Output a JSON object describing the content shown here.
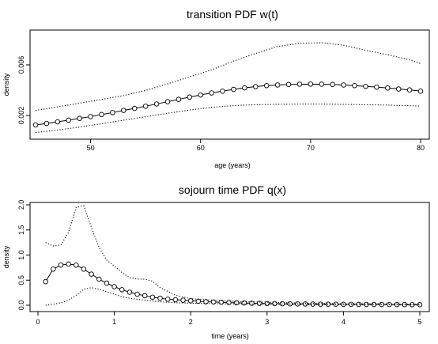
{
  "chart_data": [
    {
      "type": "line",
      "title": "transition PDF w(t)",
      "xlabel": "age (years)",
      "ylabel": "density",
      "xlim": [
        45,
        80
      ],
      "ylim": [
        0.0005,
        0.0085
      ],
      "xticks": [
        50,
        60,
        70,
        80
      ],
      "yticks": [
        0.002,
        0.006
      ],
      "ytick_labels": [
        "0.002",
        "0.006"
      ],
      "grid": false,
      "series": [
        {
          "style": "solid-with-circles",
          "x": [
            45,
            46,
            47,
            48,
            49,
            50,
            51,
            52,
            53,
            54,
            55,
            56,
            57,
            58,
            59,
            60,
            61,
            62,
            63,
            64,
            65,
            66,
            67,
            68,
            69,
            70,
            71,
            72,
            73,
            74,
            75,
            76,
            77,
            78,
            79,
            80
          ],
          "y": [
            0.00125,
            0.00137,
            0.0015,
            0.00163,
            0.00177,
            0.00191,
            0.00207,
            0.00223,
            0.0024,
            0.00256,
            0.00273,
            0.00291,
            0.00309,
            0.00327,
            0.00345,
            0.00362,
            0.00378,
            0.00392,
            0.00406,
            0.00418,
            0.00428,
            0.00436,
            0.00441,
            0.00445,
            0.00447,
            0.00448,
            0.00447,
            0.00445,
            0.00441,
            0.00436,
            0.0043,
            0.00424,
            0.00417,
            0.00409,
            0.00402,
            0.00392
          ]
        },
        {
          "style": "dotted",
          "x": [
            45,
            47,
            49,
            51,
            53,
            55,
            57,
            59,
            61,
            63,
            65,
            67,
            69,
            71,
            73,
            75,
            77,
            79,
            80
          ],
          "y": [
            0.0024,
            0.00268,
            0.00297,
            0.00327,
            0.00357,
            0.00398,
            0.0045,
            0.00505,
            0.0056,
            0.0063,
            0.0069,
            0.00745,
            0.0077,
            0.00775,
            0.00755,
            0.00715,
            0.0068,
            0.0064,
            0.0061
          ]
        },
        {
          "style": "dotted",
          "x": [
            45,
            47,
            49,
            51,
            53,
            55,
            57,
            59,
            61,
            63,
            65,
            67,
            69,
            71,
            73,
            75,
            77,
            79,
            80
          ],
          "y": [
            0.00065,
            0.00085,
            0.00108,
            0.00135,
            0.00163,
            0.0019,
            0.00217,
            0.00243,
            0.00265,
            0.00278,
            0.00285,
            0.00288,
            0.0029,
            0.0029,
            0.00288,
            0.00285,
            0.00282,
            0.00277,
            0.00274
          ]
        }
      ]
    },
    {
      "type": "line",
      "title": "sojourn time PDF q(x)",
      "xlabel": "time (years)",
      "ylabel": "density",
      "xlim": [
        0,
        5
      ],
      "ylim": [
        0,
        2.0
      ],
      "xticks": [
        0,
        1,
        2,
        3,
        4,
        5
      ],
      "yticks": [
        0.0,
        0.5,
        1.0,
        1.5,
        2.0
      ],
      "ytick_labels": [
        "0.0",
        "0.5",
        "1.0",
        "1.5",
        "2.0"
      ],
      "grid": false,
      "series": [
        {
          "style": "solid-with-circles",
          "x": [
            0.1,
            0.2,
            0.3,
            0.4,
            0.5,
            0.6,
            0.7,
            0.8,
            0.9,
            1.0,
            1.1,
            1.2,
            1.3,
            1.4,
            1.5,
            1.6,
            1.7,
            1.8,
            1.9,
            2.0,
            2.1,
            2.2,
            2.3,
            2.4,
            2.5,
            2.6,
            2.7,
            2.8,
            2.9,
            3.0,
            3.1,
            3.2,
            3.3,
            3.4,
            3.5,
            3.6,
            3.7,
            3.8,
            3.9,
            4.0,
            4.1,
            4.2,
            4.3,
            4.4,
            4.5,
            4.6,
            4.7,
            4.8,
            4.9,
            5.0
          ],
          "y": [
            0.47,
            0.72,
            0.8,
            0.82,
            0.8,
            0.72,
            0.62,
            0.52,
            0.44,
            0.37,
            0.31,
            0.26,
            0.22,
            0.19,
            0.16,
            0.14,
            0.12,
            0.11,
            0.1,
            0.09,
            0.08,
            0.07,
            0.065,
            0.06,
            0.055,
            0.05,
            0.045,
            0.04,
            0.038,
            0.035,
            0.033,
            0.03,
            0.028,
            0.026,
            0.025,
            0.023,
            0.022,
            0.021,
            0.02,
            0.019,
            0.018,
            0.017,
            0.016,
            0.015,
            0.015,
            0.014,
            0.013,
            0.013,
            0.012,
            0.012
          ]
        },
        {
          "style": "dotted",
          "x": [
            0.1,
            0.2,
            0.3,
            0.4,
            0.5,
            0.6,
            0.7,
            0.8,
            0.9,
            1.0,
            1.1,
            1.2,
            1.3,
            1.4,
            1.5,
            1.6,
            1.8,
            2.0,
            2.5,
            3.0,
            3.5,
            4.0,
            4.5,
            5.0
          ],
          "y": [
            1.25,
            1.18,
            1.2,
            1.45,
            1.95,
            1.98,
            1.55,
            1.15,
            0.9,
            0.78,
            0.65,
            0.55,
            0.52,
            0.52,
            0.48,
            0.35,
            0.2,
            0.13,
            0.08,
            0.06,
            0.04,
            0.03,
            0.03,
            0.02
          ]
        },
        {
          "style": "dotted",
          "x": [
            0.1,
            0.2,
            0.3,
            0.4,
            0.5,
            0.6,
            0.7,
            0.8,
            0.9,
            1.0,
            1.1,
            1.2,
            1.4,
            1.6,
            1.8,
            2.0,
            2.5,
            3.0,
            3.5,
            4.0,
            4.5,
            5.0
          ],
          "y": [
            0.0,
            0.02,
            0.05,
            0.1,
            0.2,
            0.32,
            0.35,
            0.32,
            0.27,
            0.22,
            0.17,
            0.14,
            0.1,
            0.07,
            0.05,
            0.04,
            0.03,
            0.02,
            0.01,
            0.01,
            0.01,
            0.005
          ]
        }
      ]
    }
  ]
}
